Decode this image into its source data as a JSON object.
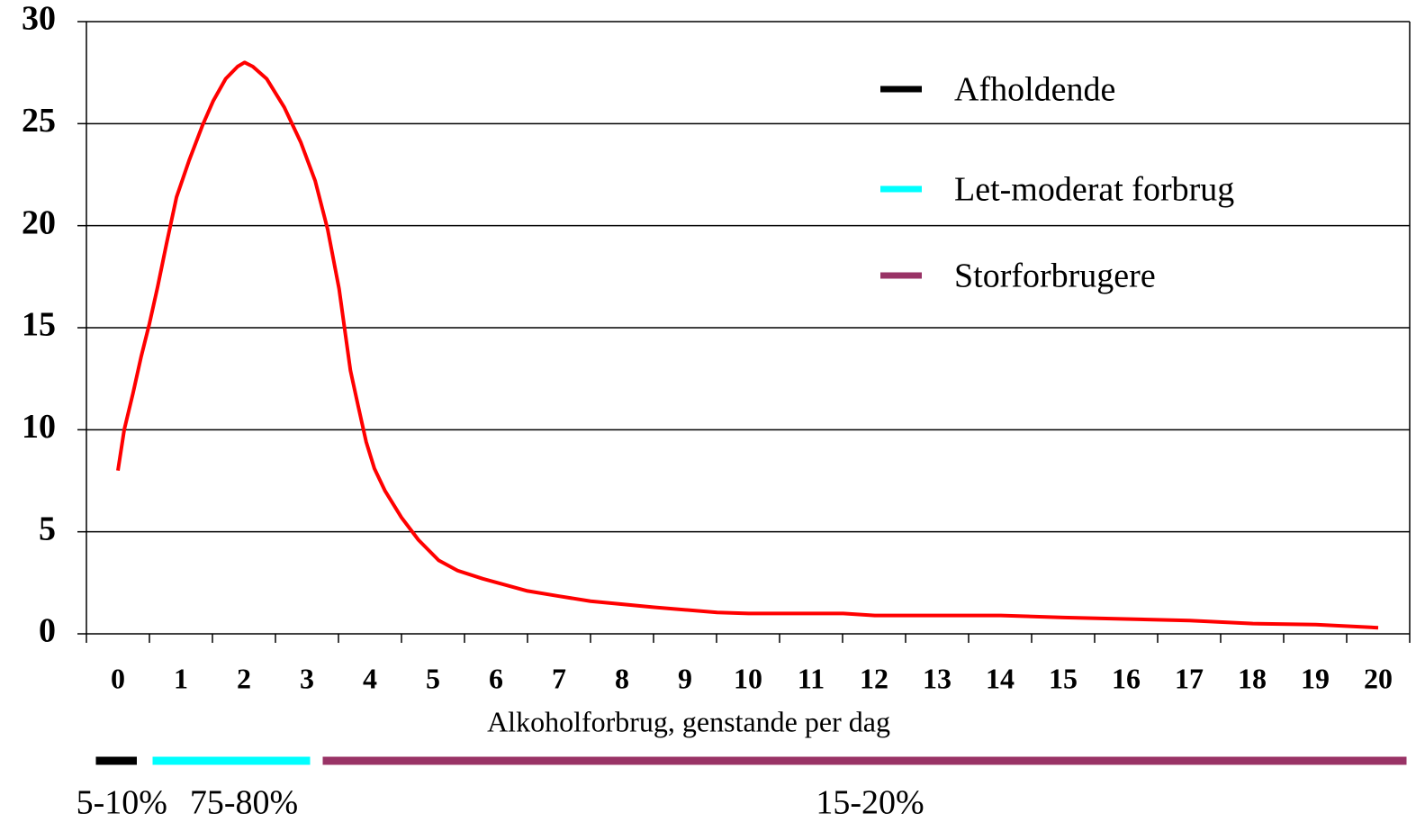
{
  "chart_data": {
    "type": "line",
    "x_label": "Alkoholforbrug, genstande per dag",
    "x": [
      0,
      0.1,
      0.24,
      0.37,
      0.5,
      0.63,
      0.77,
      0.93,
      1.13,
      1.34,
      1.51,
      1.71,
      1.9,
      2.01,
      2.14,
      2.36,
      2.64,
      2.9,
      3.13,
      3.33,
      3.51,
      3.69,
      3.81,
      3.94,
      4.07,
      4.24,
      4.5,
      4.77,
      5.09,
      5.39,
      5.79,
      6.5,
      6.99,
      7.5,
      8.51,
      9.51,
      10.01,
      11.51,
      12.01,
      14.01,
      15.01,
      17.01,
      18.01,
      19.01,
      20
    ],
    "values": [
      8,
      10,
      11.8,
      13.6,
      15.2,
      17,
      19.1,
      21.4,
      23.2,
      24.9,
      26.1,
      27.2,
      27.8,
      28,
      27.8,
      27.2,
      25.8,
      24.1,
      22.2,
      19.8,
      16.9,
      12.9,
      11.2,
      9.4,
      8.1,
      7,
      5.7,
      4.6,
      3.6,
      3.1,
      2.7,
      2.1,
      1.85,
      1.6,
      1.3,
      1.05,
      1,
      1,
      0.9,
      0.9,
      0.8,
      0.65,
      0.5,
      0.45,
      0.3
    ],
    "color": "#ff0000",
    "xlim": [
      -0.5,
      20.5
    ],
    "xticks": [
      0,
      1,
      2,
      3,
      4,
      5,
      6,
      7,
      8,
      9,
      10,
      11,
      12,
      13,
      14,
      15,
      16,
      17,
      18,
      19,
      20
    ],
    "ylim": [
      0,
      30
    ],
    "yticks": [
      0,
      5,
      10,
      15,
      20,
      25,
      30
    ],
    "grid": true,
    "legend": "upper right",
    "groups": [
      {
        "name": "Afholdende",
        "color": "#000000",
        "range": [
          -0.35,
          0.3
        ],
        "label": "5-10%"
      },
      {
        "name": "Let-moderat forbrug",
        "color": "#00ffff",
        "range": [
          0.55,
          3.05
        ],
        "label": "75-80%"
      },
      {
        "name": "Storforbrugere",
        "color": "#993366",
        "range": [
          3.25,
          20.45
        ],
        "label": "15-20%"
      }
    ]
  }
}
